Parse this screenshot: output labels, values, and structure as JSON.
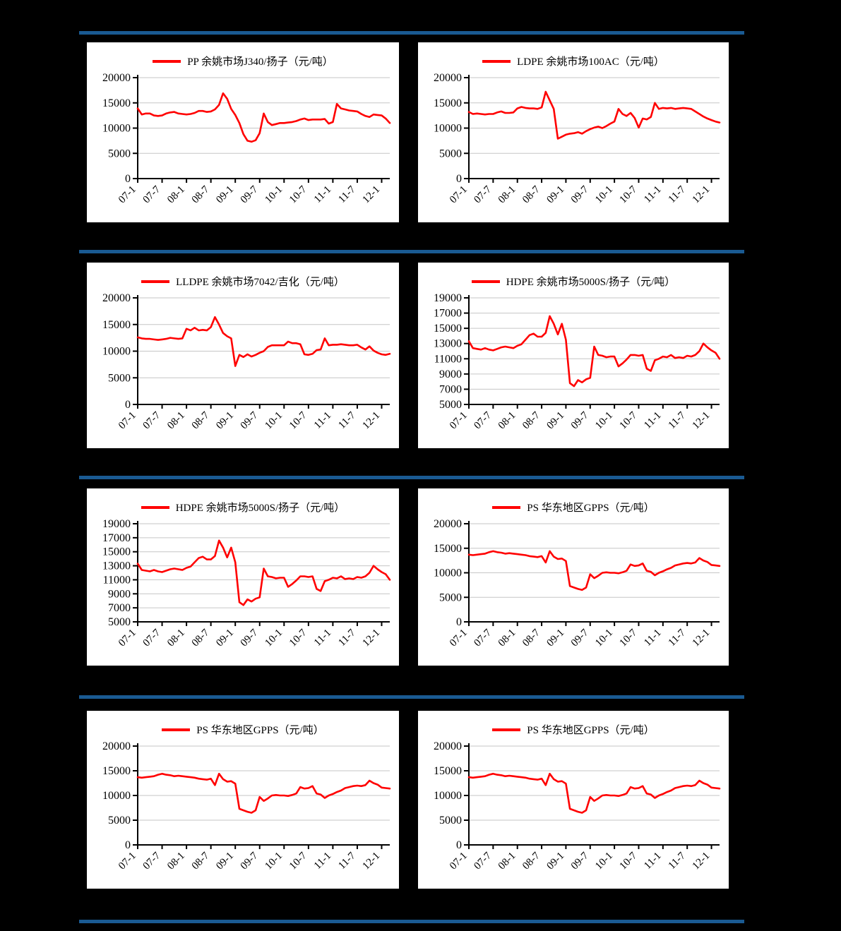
{
  "page": {
    "background": "#000000",
    "description": "8 price line charts in a 2x4 grid separated by horizontal blue bars"
  },
  "colors": {
    "separator_bar": "#1a5a92",
    "series_line": "#ff0000",
    "panel_background": "#ffffff",
    "gridline": "#c6c6c6",
    "axis": "#000000",
    "label_text": "#000000"
  },
  "x_tick_labels": [
    "07-1",
    "07-7",
    "08-1",
    "08-7",
    "09-1",
    "09-7",
    "10-1",
    "10-7",
    "11-1",
    "11-7",
    "12-1"
  ],
  "chart_data": [
    {
      "type": "line",
      "title": "PP 余姚市场J340/扬子（元/吨）",
      "legend_position": "top",
      "grid": true,
      "ylim": [
        0,
        20000
      ],
      "y_ticks": [
        0,
        5000,
        10000,
        15000,
        20000
      ],
      "x_tick_labels": [
        "07-1",
        "07-7",
        "08-1",
        "08-7",
        "09-1",
        "09-7",
        "10-1",
        "10-7",
        "11-1",
        "11-7",
        "12-1"
      ],
      "x_range_months": "2007-01 to 2012-03 (monthly)",
      "series": [
        {
          "name": "PP 余姚市场J340/扬子（元/吨）",
          "color": "#ff0000",
          "values": [
            13900,
            12700,
            12900,
            12900,
            12500,
            12400,
            12500,
            12900,
            13100,
            13200,
            12900,
            12800,
            12700,
            12800,
            13000,
            13400,
            13400,
            13200,
            13300,
            13700,
            14600,
            16900,
            15800,
            13800,
            12600,
            11000,
            8800,
            7500,
            7300,
            7600,
            9000,
            12900,
            11200,
            10600,
            10800,
            11000,
            11000,
            11100,
            11200,
            11400,
            11700,
            11900,
            11600,
            11700,
            11700,
            11700,
            11800,
            10900,
            11200,
            14800,
            13900,
            13700,
            13500,
            13400,
            13300,
            12800,
            12400,
            12200,
            12700,
            12600,
            12500,
            11900,
            11000
          ]
        }
      ]
    },
    {
      "type": "line",
      "title": "LDPE 余姚市场100AC（元/吨）",
      "legend_position": "top",
      "grid": true,
      "ylim": [
        0,
        20000
      ],
      "y_ticks": [
        0,
        5000,
        10000,
        15000,
        20000
      ],
      "x_tick_labels": [
        "07-1",
        "07-7",
        "08-1",
        "08-7",
        "09-1",
        "09-7",
        "10-1",
        "10-7",
        "11-1",
        "11-7",
        "12-1"
      ],
      "x_range_months": "2007-01 to 2012-03 (monthly)",
      "series": [
        {
          "name": "LDPE 余姚市场100AC（元/吨）",
          "color": "#ff0000",
          "values": [
            13200,
            12800,
            12900,
            12800,
            12700,
            12800,
            12800,
            13100,
            13300,
            13000,
            13000,
            13100,
            13900,
            14200,
            14000,
            13900,
            13900,
            13800,
            14100,
            17200,
            15500,
            13800,
            7900,
            8300,
            8700,
            8900,
            9000,
            9200,
            8900,
            9400,
            9800,
            10100,
            10300,
            10000,
            10400,
            10900,
            11300,
            13800,
            12800,
            12400,
            13000,
            12000,
            10100,
            11900,
            11700,
            12200,
            15000,
            13800,
            14000,
            13900,
            14000,
            13800,
            13900,
            14000,
            13900,
            13800,
            13300,
            12800,
            12300,
            11900,
            11600,
            11300,
            11100
          ]
        }
      ]
    },
    {
      "type": "line",
      "title": "LLDPE 余姚市场7042/吉化（元/吨）",
      "legend_position": "top",
      "grid": true,
      "ylim": [
        0,
        20000
      ],
      "y_ticks": [
        0,
        5000,
        10000,
        15000,
        20000
      ],
      "x_tick_labels": [
        "07-1",
        "07-7",
        "08-1",
        "08-7",
        "09-1",
        "09-7",
        "10-1",
        "10-7",
        "11-1",
        "11-7",
        "12-1"
      ],
      "x_range_months": "2007-01 to 2012-03 (monthly)",
      "series": [
        {
          "name": "LLDPE 余姚市场7042/吉化（元/吨）",
          "color": "#ff0000",
          "values": [
            12600,
            12400,
            12300,
            12300,
            12200,
            12100,
            12200,
            12300,
            12500,
            12400,
            12300,
            12400,
            14200,
            13900,
            14400,
            13900,
            14000,
            13900,
            14500,
            16400,
            15000,
            13400,
            12800,
            12400,
            7200,
            9300,
            8900,
            9400,
            9000,
            9300,
            9700,
            10000,
            10800,
            11100,
            11100,
            11100,
            11100,
            11800,
            11500,
            11500,
            11300,
            9400,
            9300,
            9500,
            10200,
            10300,
            12400,
            11100,
            11200,
            11200,
            11300,
            11200,
            11100,
            11100,
            11200,
            10700,
            10300,
            10900,
            10100,
            9700,
            9400,
            9300,
            9500
          ]
        }
      ]
    },
    {
      "type": "line",
      "title": "HDPE 余姚市场5000S/扬子（元/吨）",
      "legend_position": "top",
      "grid": true,
      "ylim": [
        5000,
        19000
      ],
      "y_ticks": [
        5000,
        7000,
        9000,
        11000,
        13000,
        15000,
        17000,
        19000
      ],
      "x_tick_labels": [
        "07-1",
        "07-7",
        "08-1",
        "08-7",
        "09-1",
        "09-7",
        "10-1",
        "10-7",
        "11-1",
        "11-7",
        "12-1"
      ],
      "x_range_months": "2007-01 to 2012-03 (monthly)",
      "series": [
        {
          "name": "HDPE 余姚市场5000S/扬子（元/吨）",
          "color": "#ff0000",
          "values": [
            13300,
            12400,
            12300,
            12200,
            12400,
            12200,
            12100,
            12300,
            12500,
            12600,
            12500,
            12400,
            12700,
            12900,
            13500,
            14100,
            14300,
            13900,
            13900,
            14400,
            16600,
            15600,
            14200,
            15600,
            13500,
            7800,
            7400,
            8200,
            7900,
            8300,
            8500,
            12600,
            11500,
            11400,
            11200,
            11300,
            11300,
            10000,
            10400,
            10900,
            11500,
            11500,
            11400,
            11500,
            9700,
            9400,
            10800,
            11000,
            11300,
            11200,
            11500,
            11100,
            11200,
            11100,
            11400,
            11300,
            11500,
            12000,
            13000,
            12500,
            12100,
            11800,
            11000
          ]
        }
      ]
    },
    {
      "type": "line",
      "title": "HDPE 余姚市场5000S/扬子（元/吨）",
      "legend_position": "top",
      "grid": true,
      "ylim": [
        5000,
        19000
      ],
      "y_ticks": [
        5000,
        7000,
        9000,
        11000,
        13000,
        15000,
        17000,
        19000
      ],
      "x_tick_labels": [
        "07-1",
        "07-7",
        "08-1",
        "08-7",
        "09-1",
        "09-7",
        "10-1",
        "10-7",
        "11-1",
        "11-7",
        "12-1"
      ],
      "x_range_months": "2007-01 to 2012-03 (monthly)",
      "series": [
        {
          "name": "HDPE 余姚市场5000S/扬子（元/吨）",
          "color": "#ff0000",
          "values": [
            13300,
            12400,
            12300,
            12200,
            12400,
            12200,
            12100,
            12300,
            12500,
            12600,
            12500,
            12400,
            12700,
            12900,
            13500,
            14100,
            14300,
            13900,
            13900,
            14400,
            16600,
            15600,
            14200,
            15600,
            13500,
            7800,
            7400,
            8200,
            7900,
            8300,
            8500,
            12600,
            11500,
            11400,
            11200,
            11300,
            11300,
            10000,
            10400,
            10900,
            11500,
            11500,
            11400,
            11500,
            9700,
            9400,
            10800,
            11000,
            11300,
            11200,
            11500,
            11100,
            11200,
            11100,
            11400,
            11300,
            11500,
            12000,
            13000,
            12500,
            12100,
            11800,
            11000
          ]
        }
      ]
    },
    {
      "type": "line",
      "title": "PS 华东地区GPPS（元/吨）",
      "legend_position": "top",
      "grid": true,
      "ylim": [
        0,
        20000
      ],
      "y_ticks": [
        0,
        5000,
        10000,
        15000,
        20000
      ],
      "x_tick_labels": [
        "07-1",
        "07-7",
        "08-1",
        "08-7",
        "09-1",
        "09-7",
        "10-1",
        "10-7",
        "11-1",
        "11-7",
        "12-1"
      ],
      "x_range_months": "2007-01 to 2012-03 (monthly)",
      "series": [
        {
          "name": "PS 华东地区GPPS（元/吨）",
          "color": "#ff0000",
          "values": [
            13700,
            13600,
            13700,
            13800,
            13900,
            14200,
            14400,
            14200,
            14100,
            13900,
            14000,
            13900,
            13800,
            13700,
            13600,
            13400,
            13300,
            13200,
            13400,
            12100,
            14400,
            13300,
            12800,
            12900,
            12400,
            7300,
            7000,
            6700,
            6500,
            7000,
            9700,
            8900,
            9400,
            10000,
            10100,
            10000,
            10000,
            9900,
            10100,
            10400,
            11700,
            11400,
            11500,
            11900,
            10400,
            10200,
            9500,
            10000,
            10300,
            10700,
            11000,
            11500,
            11700,
            11900,
            12000,
            11900,
            12100,
            13000,
            12500,
            12200,
            11600,
            11500,
            11400
          ]
        }
      ]
    },
    {
      "type": "line",
      "title": "PS 华东地区GPPS（元/吨）",
      "legend_position": "top",
      "grid": true,
      "ylim": [
        0,
        20000
      ],
      "y_ticks": [
        0,
        5000,
        10000,
        15000,
        20000
      ],
      "x_tick_labels": [
        "07-1",
        "07-7",
        "08-1",
        "08-7",
        "09-1",
        "09-7",
        "10-1",
        "10-7",
        "11-1",
        "11-7",
        "12-1"
      ],
      "x_range_months": "2007-01 to 2012-03 (monthly)",
      "series": [
        {
          "name": "PS 华东地区GPPS（元/吨）",
          "color": "#ff0000",
          "values": [
            13700,
            13600,
            13700,
            13800,
            13900,
            14200,
            14400,
            14200,
            14100,
            13900,
            14000,
            13900,
            13800,
            13700,
            13600,
            13400,
            13300,
            13200,
            13400,
            12100,
            14400,
            13300,
            12800,
            12900,
            12400,
            7300,
            7000,
            6700,
            6500,
            7000,
            9700,
            8900,
            9400,
            10000,
            10100,
            10000,
            10000,
            9900,
            10100,
            10400,
            11700,
            11400,
            11500,
            11900,
            10400,
            10200,
            9500,
            10000,
            10300,
            10700,
            11000,
            11500,
            11700,
            11900,
            12000,
            11900,
            12100,
            13000,
            12500,
            12200,
            11600,
            11500,
            11400
          ]
        }
      ]
    },
    {
      "type": "line",
      "title": "PS 华东地区GPPS（元/吨）",
      "legend_position": "top",
      "grid": true,
      "ylim": [
        0,
        20000
      ],
      "y_ticks": [
        0,
        5000,
        10000,
        15000,
        20000
      ],
      "x_tick_labels": [
        "07-1",
        "07-7",
        "08-1",
        "08-7",
        "09-1",
        "09-7",
        "10-1",
        "10-7",
        "11-1",
        "11-7",
        "12-1"
      ],
      "x_range_months": "2007-01 to 2012-03 (monthly)",
      "series": [
        {
          "name": "PS 华东地区GPPS（元/吨）",
          "color": "#ff0000",
          "values": [
            13700,
            13600,
            13700,
            13800,
            13900,
            14200,
            14400,
            14200,
            14100,
            13900,
            14000,
            13900,
            13800,
            13700,
            13600,
            13400,
            13300,
            13200,
            13400,
            12100,
            14400,
            13300,
            12800,
            12900,
            12400,
            7300,
            7000,
            6700,
            6500,
            7000,
            9700,
            8900,
            9400,
            10000,
            10100,
            10000,
            10000,
            9900,
            10100,
            10400,
            11700,
            11400,
            11500,
            11900,
            10400,
            10200,
            9500,
            10000,
            10300,
            10700,
            11000,
            11500,
            11700,
            11900,
            12000,
            11900,
            12100,
            13000,
            12500,
            12200,
            11600,
            11500,
            11400
          ]
        }
      ]
    }
  ]
}
